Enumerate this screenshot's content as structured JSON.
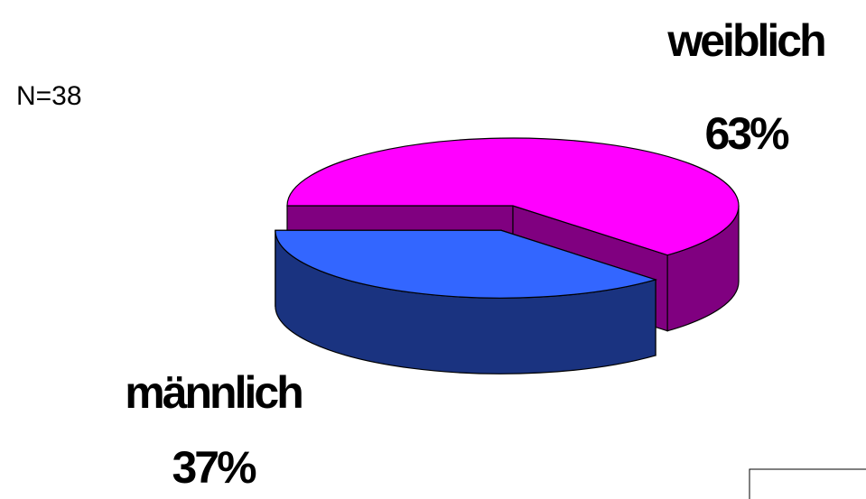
{
  "chart_data": {
    "type": "pie",
    "annotation": "N=38",
    "categories": [
      "weiblich",
      "männlich"
    ],
    "values": [
      63,
      37
    ],
    "value_labels": [
      "63%",
      "37%"
    ],
    "colors": [
      "#ff00ff",
      "#3366ff"
    ],
    "explode": [
      false,
      true
    ],
    "three_d": true
  }
}
